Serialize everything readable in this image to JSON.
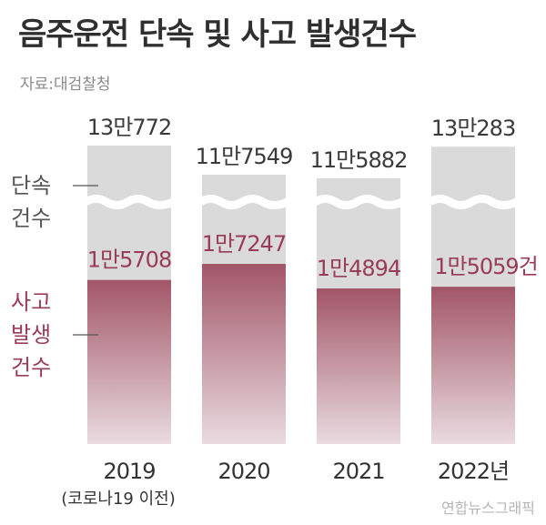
{
  "header": {
    "title": "음주운전 단속 및 사고 발생건수",
    "source": "자료:대검찰청"
  },
  "footer": {
    "credit": "연합뉴스그래픽"
  },
  "legend": {
    "enforcement": [
      "단속",
      "건수"
    ],
    "accidents": [
      "사고",
      "발생",
      "건수"
    ]
  },
  "colors": {
    "enforcement_bar": "#dadada",
    "accident_bar_top": "#a25668",
    "accident_bar_bottom": "#e9dbe0",
    "enforcement_label": "#3a3a3a",
    "accident_label": "#9a3b57",
    "legend_enforcement": "#555555",
    "legend_accident": "#9a3b57"
  },
  "chart_data": {
    "type": "bar",
    "axis_break": true,
    "categories": [
      "2019",
      "2020",
      "2021",
      "2022년"
    ],
    "category_note": "(코로나19 이전)",
    "series": [
      {
        "name": "단속 건수",
        "values": [
          130772,
          117549,
          115882,
          130283
        ],
        "labels": [
          "13만772",
          "11만7549",
          "11만5882",
          "13만283"
        ]
      },
      {
        "name": "사고 발생건수",
        "values": [
          15708,
          17247,
          14894,
          15059
        ],
        "labels": [
          "1만5708",
          "1만7247",
          "1만4894",
          "1만5059건"
        ]
      }
    ]
  }
}
